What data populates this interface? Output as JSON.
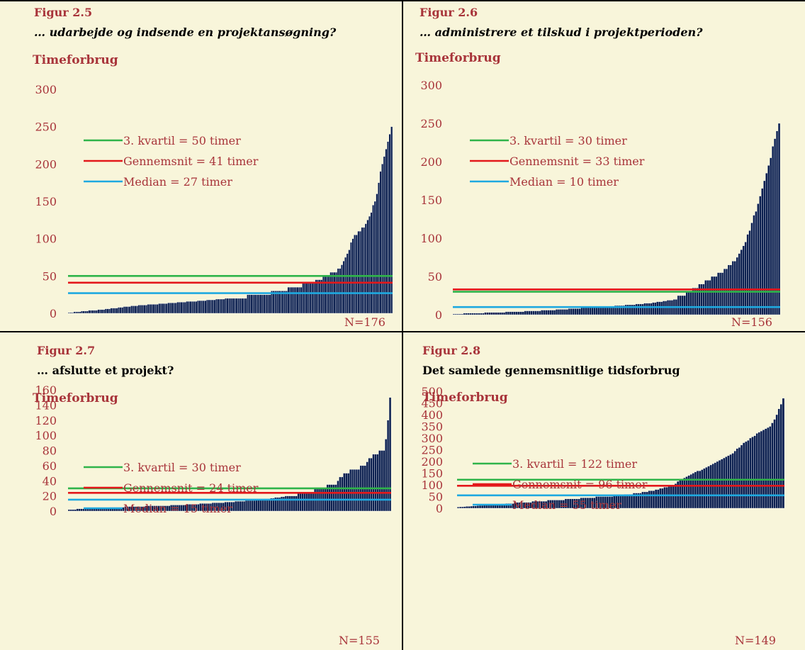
{
  "colors": {
    "bar": "#0b1f4f",
    "bar_edge": "#ffffff",
    "panel_bg": "#f8f5da",
    "green": "#2fb44a",
    "red": "#e3181b",
    "blue": "#1ea9e0",
    "axis_text": "#a8343a"
  },
  "chart_data": [
    {
      "type": "bar",
      "figure_label": "Figur 2.5",
      "title": "… udarbejde og indsende en projektansøgning?",
      "title_italic": true,
      "ylabel": "Timeforbrug",
      "ylim": [
        0,
        300
      ],
      "yticks": [
        0,
        50,
        100,
        150,
        200,
        250,
        300
      ],
      "n_label": "N=176",
      "n": 176,
      "sorted_ascending": true,
      "value_profile": [
        [
          0,
          1
        ],
        [
          0.1,
          5
        ],
        [
          0.2,
          10
        ],
        [
          0.35,
          15
        ],
        [
          0.5,
          20
        ],
        [
          0.6,
          25
        ],
        [
          0.65,
          30
        ],
        [
          0.75,
          40
        ],
        [
          0.8,
          50
        ],
        [
          0.84,
          60
        ],
        [
          0.86,
          75
        ],
        [
          0.88,
          100
        ],
        [
          0.92,
          120
        ],
        [
          0.95,
          150
        ],
        [
          0.97,
          200
        ],
        [
          1.0,
          250
        ]
      ],
      "reference_lines": [
        {
          "name": "3. kvartil = 50 timer",
          "value": 50,
          "color": "green"
        },
        {
          "name": "Gennemsnit = 41 timer",
          "value": 41,
          "color": "red"
        },
        {
          "name": "Median = 27 timer",
          "value": 27,
          "color": "blue"
        }
      ]
    },
    {
      "type": "bar",
      "figure_label": "Figur 2.6",
      "title": "… administrere et tilskud i projektperioden?",
      "title_italic": true,
      "ylabel": "Timeforbrug",
      "ylim": [
        0,
        300
      ],
      "yticks": [
        0,
        50,
        100,
        150,
        200,
        250,
        300
      ],
      "n_label": "N=156",
      "n": 156,
      "sorted_ascending": true,
      "value_profile": [
        [
          0,
          1
        ],
        [
          0.25,
          5
        ],
        [
          0.45,
          10
        ],
        [
          0.6,
          15
        ],
        [
          0.68,
          20
        ],
        [
          0.72,
          30
        ],
        [
          0.76,
          40
        ],
        [
          0.8,
          50
        ],
        [
          0.84,
          60
        ],
        [
          0.87,
          75
        ],
        [
          0.9,
          100
        ],
        [
          0.94,
          150
        ],
        [
          0.97,
          200
        ],
        [
          1.0,
          250
        ]
      ],
      "reference_lines": [
        {
          "name": "3. kvartil = 30 timer",
          "value": 30,
          "color": "green"
        },
        {
          "name": "Gennemsnit = 33 timer",
          "value": 33,
          "color": "red"
        },
        {
          "name": "Median = 10 timer",
          "value": 10,
          "color": "blue"
        }
      ]
    },
    {
      "type": "bar",
      "figure_label": "Figur 2.7",
      "title": "… afslutte et projekt?",
      "title_italic": false,
      "ylabel": "Timeforbrug",
      "ylim": [
        0,
        160
      ],
      "yticks": [
        0,
        20,
        40,
        60,
        80,
        100,
        120,
        140,
        160
      ],
      "n_label": "N=155",
      "n": 155,
      "sorted_ascending": true,
      "value_profile": [
        [
          0,
          2
        ],
        [
          0.1,
          4
        ],
        [
          0.2,
          6
        ],
        [
          0.35,
          8
        ],
        [
          0.5,
          12
        ],
        [
          0.6,
          15
        ],
        [
          0.68,
          20
        ],
        [
          0.74,
          25
        ],
        [
          0.78,
          30
        ],
        [
          0.83,
          36
        ],
        [
          0.86,
          50
        ],
        [
          0.92,
          60
        ],
        [
          0.95,
          75
        ],
        [
          0.98,
          80
        ],
        [
          0.99,
          100
        ],
        [
          1.0,
          150
        ]
      ],
      "reference_lines": [
        {
          "name": "3. kvartil = 30 timer",
          "value": 30,
          "color": "green"
        },
        {
          "name": "Gennemsnit = 24 timer",
          "value": 24,
          "color": "red"
        },
        {
          "name": "Median = 15 timer",
          "value": 15,
          "color": "blue"
        }
      ]
    },
    {
      "type": "bar",
      "figure_label": "Figur 2.8",
      "title": "Det samlede gennemsnitlige tidsforbrug",
      "title_italic": false,
      "ylabel": "Timeforbrug",
      "ylim": [
        0,
        500
      ],
      "yticks": [
        0,
        50,
        100,
        150,
        200,
        250,
        300,
        350,
        400,
        450,
        500
      ],
      "n_label": "N=149",
      "n": 149,
      "sorted_ascending": true,
      "value_profile": [
        [
          0,
          5
        ],
        [
          0.1,
          15
        ],
        [
          0.2,
          25
        ],
        [
          0.3,
          35
        ],
        [
          0.4,
          45
        ],
        [
          0.5,
          55
        ],
        [
          0.6,
          75
        ],
        [
          0.66,
          100
        ],
        [
          0.72,
          150
        ],
        [
          0.76,
          170
        ],
        [
          0.8,
          200
        ],
        [
          0.84,
          230
        ],
        [
          0.88,
          280
        ],
        [
          0.92,
          320
        ],
        [
          0.96,
          350
        ],
        [
          0.98,
          400
        ],
        [
          1.0,
          470
        ]
      ],
      "reference_lines": [
        {
          "name": "3. kvartil = 122 timer",
          "value": 122,
          "color": "green"
        },
        {
          "name": "Gennemsnit = 96 timer",
          "value": 96,
          "color": "red"
        },
        {
          "name": "Median = 55 timer",
          "value": 55,
          "color": "blue"
        }
      ]
    }
  ]
}
